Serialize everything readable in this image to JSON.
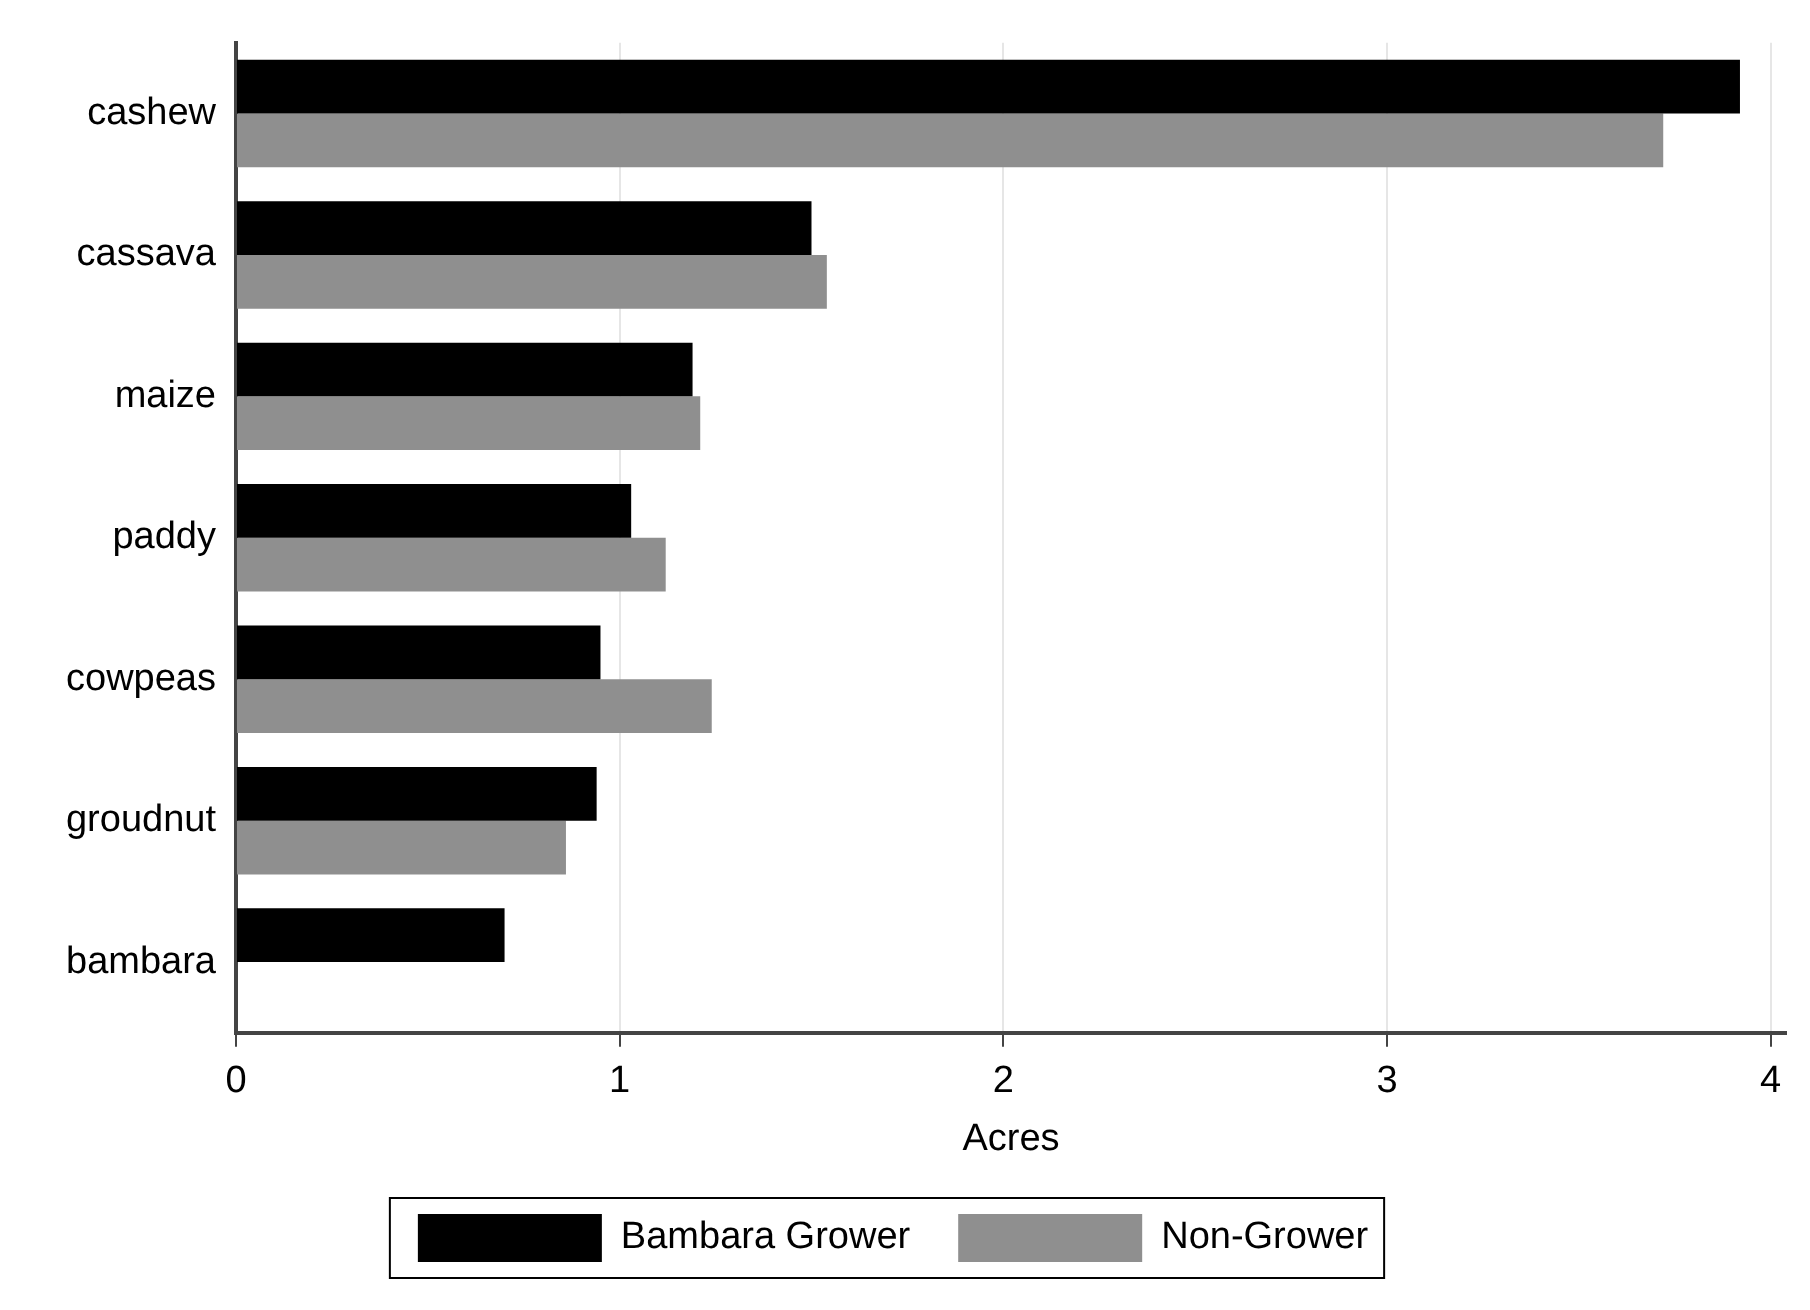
{
  "chart_data": {
    "type": "bar",
    "orientation": "horizontal",
    "xlabel": "Acres",
    "categories": [
      "cashew",
      "cassava",
      "maize",
      "paddy",
      "cowpeas",
      "groudnut",
      "bambara"
    ],
    "series": [
      {
        "name": "Bambara Grower",
        "color": "#000000",
        "values": [
          3.92,
          1.5,
          1.19,
          1.03,
          0.95,
          0.94,
          0.7
        ]
      },
      {
        "name": "Non-Grower",
        "color": "#8f8f8f",
        "values": [
          3.72,
          1.54,
          1.21,
          1.12,
          1.24,
          0.86,
          null
        ]
      }
    ],
    "xlim": [
      0,
      4.04
    ],
    "xticks": [
      0,
      1,
      2,
      3,
      4
    ],
    "grid": "x",
    "legend": "bottom"
  }
}
